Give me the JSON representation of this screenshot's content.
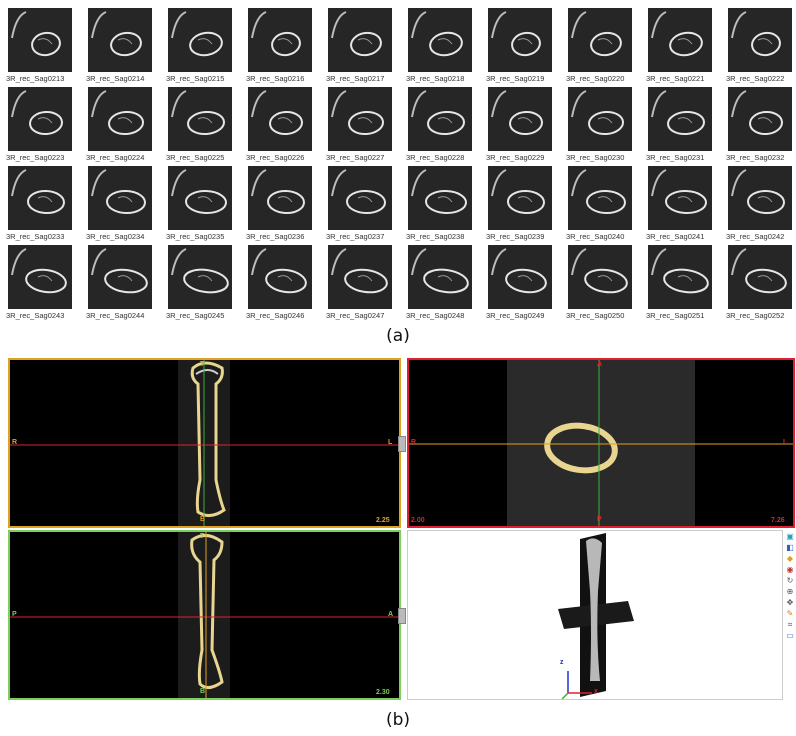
{
  "thumbnails": {
    "rows": [
      [
        "3R_rec_Sag0213",
        "3R_rec_Sag0214",
        "3R_rec_Sag0215",
        "3R_rec_Sag0216",
        "3R_rec_Sag0217",
        "3R_rec_Sag0218",
        "3R_rec_Sag0219",
        "3R_rec_Sag0220",
        "3R_rec_Sag0221",
        "3R_rec_Sag0222"
      ],
      [
        "3R_rec_Sag0223",
        "3R_rec_Sag0224",
        "3R_rec_Sag0225",
        "3R_rec_Sag0226",
        "3R_rec_Sag0227",
        "3R_rec_Sag0228",
        "3R_rec_Sag0229",
        "3R_rec_Sag0230",
        "3R_rec_Sag0231",
        "3R_rec_Sag0232"
      ],
      [
        "3R_rec_Sag0233",
        "3R_rec_Sag0234",
        "3R_rec_Sag0235",
        "3R_rec_Sag0236",
        "3R_rec_Sag0237",
        "3R_rec_Sag0238",
        "3R_rec_Sag0239",
        "3R_rec_Sag0240",
        "3R_rec_Sag0241",
        "3R_rec_Sag0242"
      ],
      [
        "3R_rec_Sag0243",
        "3R_rec_Sag0244",
        "3R_rec_Sag0245",
        "3R_rec_Sag0246",
        "3R_rec_Sag0247",
        "3R_rec_Sag0248",
        "3R_rec_Sag0249",
        "3R_rec_Sag0250",
        "3R_rec_Sag0251",
        "3R_rec_Sag0252"
      ]
    ]
  },
  "captions": {
    "a": "(a)",
    "b": "(b)"
  },
  "viewer": {
    "coronal": {
      "top": "T",
      "bottom": "B",
      "left": "R",
      "right": "L",
      "zoom": "2.25",
      "color": "#e0a020"
    },
    "axial": {
      "top": "A",
      "bottom": "P",
      "left": "R",
      "right": "L",
      "zoom_left": "2.00",
      "zoom_right": "7.26",
      "color": "#e02030"
    },
    "sagittal": {
      "top": "T",
      "bottom": "B",
      "left": "P",
      "right": "A",
      "zoom": "2.30",
      "color": "#7ccf5a"
    },
    "view3d": {
      "axis_z": "z",
      "axis_x": "x"
    }
  },
  "toolbar_icons": [
    "layers-icon",
    "palette-icon",
    "cube-icon",
    "eye-icon",
    "rotate-icon",
    "zoom-icon",
    "move-icon",
    "pen-icon",
    "crop-icon",
    "window-icon"
  ],
  "colors": {
    "bone": "#e8d590",
    "crosshair_red": "#e02030",
    "crosshair_green": "#3fae3f",
    "crosshair_orange": "#e0a020"
  }
}
